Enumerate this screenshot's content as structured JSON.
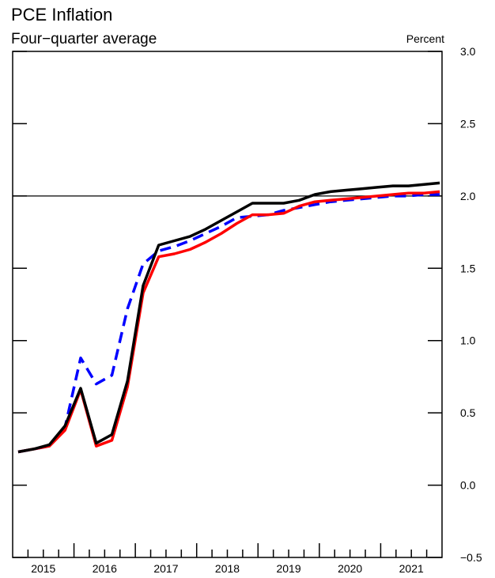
{
  "chart_data": {
    "type": "line",
    "title": "PCE Inflation",
    "subtitle": "Four−quarter average",
    "ylabel": "Percent",
    "ylim": [
      -0.5,
      3.0
    ],
    "yticks": [
      "−0.5",
      "0.0",
      "0.5",
      "1.0",
      "1.5",
      "2.0",
      "2.5",
      "3.0"
    ],
    "yticks_values": [
      -0.5,
      0.0,
      0.5,
      1.0,
      1.5,
      2.0,
      2.5,
      3.0
    ],
    "reference_line": 2.0,
    "xlim": [
      "2015:Q1",
      "2021:Q4"
    ],
    "x_year_labels": [
      "2015",
      "2016",
      "2017",
      "2018",
      "2019",
      "2020",
      "2021"
    ],
    "x": [
      "2015:Q1",
      "2015:Q2",
      "2015:Q3",
      "2015:Q4",
      "2016:Q1",
      "2016:Q2",
      "2016:Q3",
      "2016:Q4",
      "2017:Q1",
      "2017:Q2",
      "2017:Q3",
      "2017:Q4",
      "2018:Q1",
      "2018:Q2",
      "2018:Q3",
      "2018:Q4",
      "2019:Q1",
      "2019:Q2",
      "2019:Q3",
      "2019:Q4",
      "2020:Q1",
      "2020:Q2",
      "2020:Q3",
      "2020:Q4",
      "2021:Q1",
      "2021:Q2",
      "2021:Q3",
      "2021:Q4"
    ],
    "series": [
      {
        "color": "#0000ff",
        "style": "dashed",
        "values": [
          0.23,
          0.25,
          0.27,
          0.4,
          0.88,
          0.7,
          0.76,
          1.22,
          1.53,
          1.62,
          1.65,
          1.69,
          1.74,
          1.79,
          1.85,
          1.86,
          1.87,
          1.9,
          1.92,
          1.94,
          1.96,
          1.97,
          1.98,
          1.99,
          2.0,
          2.0,
          2.01,
          2.01
        ]
      },
      {
        "color": "#ff0000",
        "style": "solid",
        "values": [
          0.23,
          0.25,
          0.27,
          0.38,
          0.66,
          0.27,
          0.31,
          0.68,
          1.33,
          1.58,
          1.6,
          1.63,
          1.68,
          1.74,
          1.81,
          1.87,
          1.87,
          1.88,
          1.93,
          1.96,
          1.97,
          1.98,
          1.99,
          2.0,
          2.01,
          2.02,
          2.02,
          2.03
        ]
      },
      {
        "color": "#000000",
        "style": "solid",
        "values": [
          0.23,
          0.25,
          0.28,
          0.41,
          0.67,
          0.29,
          0.35,
          0.72,
          1.38,
          1.66,
          1.69,
          1.72,
          1.77,
          1.83,
          1.89,
          1.95,
          1.95,
          1.95,
          1.97,
          2.01,
          2.03,
          2.04,
          2.05,
          2.06,
          2.07,
          2.07,
          2.08,
          2.09
        ]
      }
    ]
  }
}
